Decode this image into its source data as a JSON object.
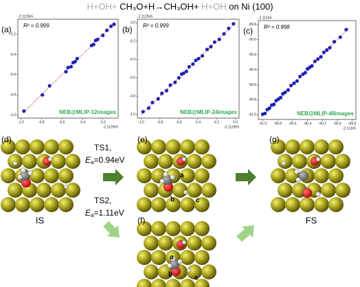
{
  "figure": {
    "title": {
      "prefix": "H+OH+",
      "main": "CH₃O+H→CH₃OH+",
      "suffix": "H+OH",
      "tail": "on Ni (100)"
    },
    "panels": {
      "d": "(d)",
      "e": "(e)",
      "f": "(f)",
      "g": "(g)"
    },
    "states": {
      "initial": "IS",
      "final": "FS"
    },
    "ts1": {
      "name": "TS1,",
      "symbol": "E",
      "subscript": "a",
      "value": "=0.94eV"
    },
    "ts2": {
      "name": "TS2,",
      "symbol": "E",
      "subscript": "a",
      "value": "=1.11eV"
    },
    "atom_labels": {
      "a": "a",
      "b": "b",
      "c": "c"
    }
  },
  "chart_data": [
    {
      "type": "scatter",
      "panel": "(a)",
      "r2": "R² = 0.999",
      "method": "NEB@MLIP-12images",
      "x_offset": "-2.1129e5",
      "y_offset": "-2.1129e5",
      "color": "#1f1fb4",
      "x": [
        -0.97,
        -0.79,
        -0.72,
        -0.56,
        -0.54,
        -0.51,
        -0.49,
        -0.47,
        -0.45,
        -0.31,
        -0.29,
        -0.27,
        -0.25,
        -0.2,
        -0.16,
        -0.12,
        -0.09
      ],
      "y": [
        -0.96,
        -0.8,
        -0.71,
        -0.57,
        -0.53,
        -0.52,
        -0.48,
        -0.47,
        -0.44,
        -0.31,
        -0.3,
        -0.26,
        -0.25,
        -0.21,
        -0.16,
        -0.12,
        -0.1
      ],
      "trendline": {
        "x": [
          -0.98,
          -0.09
        ],
        "y": [
          -0.98,
          -0.09
        ],
        "color": "#d62020"
      },
      "xlim": [
        -1.03,
        -0.05
      ],
      "ylim": [
        -1.03,
        -0.05
      ],
      "xticks": [
        {
          "value": -1,
          "label": "-1.0"
        },
        -0.8,
        -0.6,
        -0.4,
        -0.2
      ],
      "yticks": [
        {
          "value": -1,
          "label": "-1.0"
        },
        -0.8,
        -0.6,
        -0.4,
        -0.2
      ]
    },
    {
      "type": "scatter",
      "panel": "(b)",
      "r2": "R² = 0.999",
      "method": "NEB@MLIP-24images",
      "x_offset": "-2.1129e5",
      "y_offset": "-2.1129e5",
      "color": "#1f1fb4",
      "x": [
        -0.98,
        -0.92,
        -0.88,
        -0.82,
        -0.78,
        -0.73,
        -0.69,
        -0.64,
        -0.6,
        -0.57,
        -0.55,
        -0.52,
        -0.49,
        -0.45,
        -0.42,
        -0.39,
        -0.35,
        -0.3,
        -0.26,
        -0.22,
        -0.17,
        -0.12,
        -0.07,
        -0.02
      ],
      "y": [
        -0.97,
        -0.93,
        -0.87,
        -0.83,
        -0.77,
        -0.74,
        -0.68,
        -0.65,
        -0.6,
        -0.56,
        -0.55,
        -0.53,
        -0.48,
        -0.45,
        -0.41,
        -0.39,
        -0.36,
        -0.29,
        -0.26,
        -0.21,
        -0.18,
        -0.12,
        -0.06,
        -0.01
      ],
      "trendline": {
        "x": [
          -1,
          0
        ],
        "y": [
          -1,
          0
        ],
        "color": "#d62020"
      },
      "xlim": [
        -1.04,
        0.04
      ],
      "ylim": [
        -1.04,
        0.04
      ],
      "xticks": [
        {
          "value": -1,
          "label": "-1.0"
        },
        -0.8,
        -0.6,
        -0.4,
        -0.2,
        {
          "value": 0,
          "label": "0.0"
        }
      ],
      "yticks": [
        {
          "value": -1,
          "label": "-1.0"
        },
        -0.8,
        -0.6,
        -0.4,
        -0.2,
        {
          "value": 0,
          "label": "0.0"
        }
      ]
    },
    {
      "type": "scatter",
      "panel": "(c)",
      "r2": "R² = 0.998",
      "method": "NEB@MLIP-48images",
      "x_offset": "-2.112e5",
      "y_offset": "-2.112e5",
      "color": "#1f1fb4",
      "x": [
        -91.0,
        -90.97,
        -90.94,
        -90.91,
        -90.88,
        -90.85,
        -90.82,
        -90.79,
        -90.76,
        -90.73,
        -90.7,
        -90.66,
        -90.62,
        -90.58,
        -90.54,
        -90.5,
        -90.46,
        -90.43,
        -90.4,
        -90.37,
        -90.34,
        -90.3,
        -90.26,
        -90.22,
        -90.18,
        -90.14,
        -90.1,
        -90.04,
        -89.96,
        -89.88
      ],
      "y": [
        -90.99,
        -90.98,
        -90.93,
        -90.91,
        -90.87,
        -90.86,
        -90.81,
        -90.79,
        -90.77,
        -90.72,
        -90.7,
        -90.67,
        -90.61,
        -90.58,
        -90.55,
        -90.49,
        -90.46,
        -90.44,
        -90.39,
        -90.37,
        -90.35,
        -90.29,
        -90.26,
        -90.23,
        -90.17,
        -90.14,
        -90.11,
        -90.03,
        -89.97,
        -89.87
      ],
      "trendline": {
        "x": [
          -91.02,
          -89.85
        ],
        "y": [
          -91.02,
          -89.85
        ],
        "color": "#d62020"
      },
      "xlim": [
        -91.06,
        -89.75
      ],
      "ylim": [
        -91.06,
        -89.75
      ],
      "xticks": [
        {
          "value": -91,
          "label": "-91.0"
        },
        -90.8,
        -90.6,
        -90.4,
        -90.2,
        {
          "value": -90,
          "label": "-90.0"
        },
        -89.8
      ],
      "yticks": [
        {
          "value": -91,
          "label": "-91.0"
        },
        -90.8,
        -90.6,
        -90.4,
        -90.2,
        {
          "value": -90,
          "label": "-90.0"
        },
        -89.8
      ]
    }
  ]
}
